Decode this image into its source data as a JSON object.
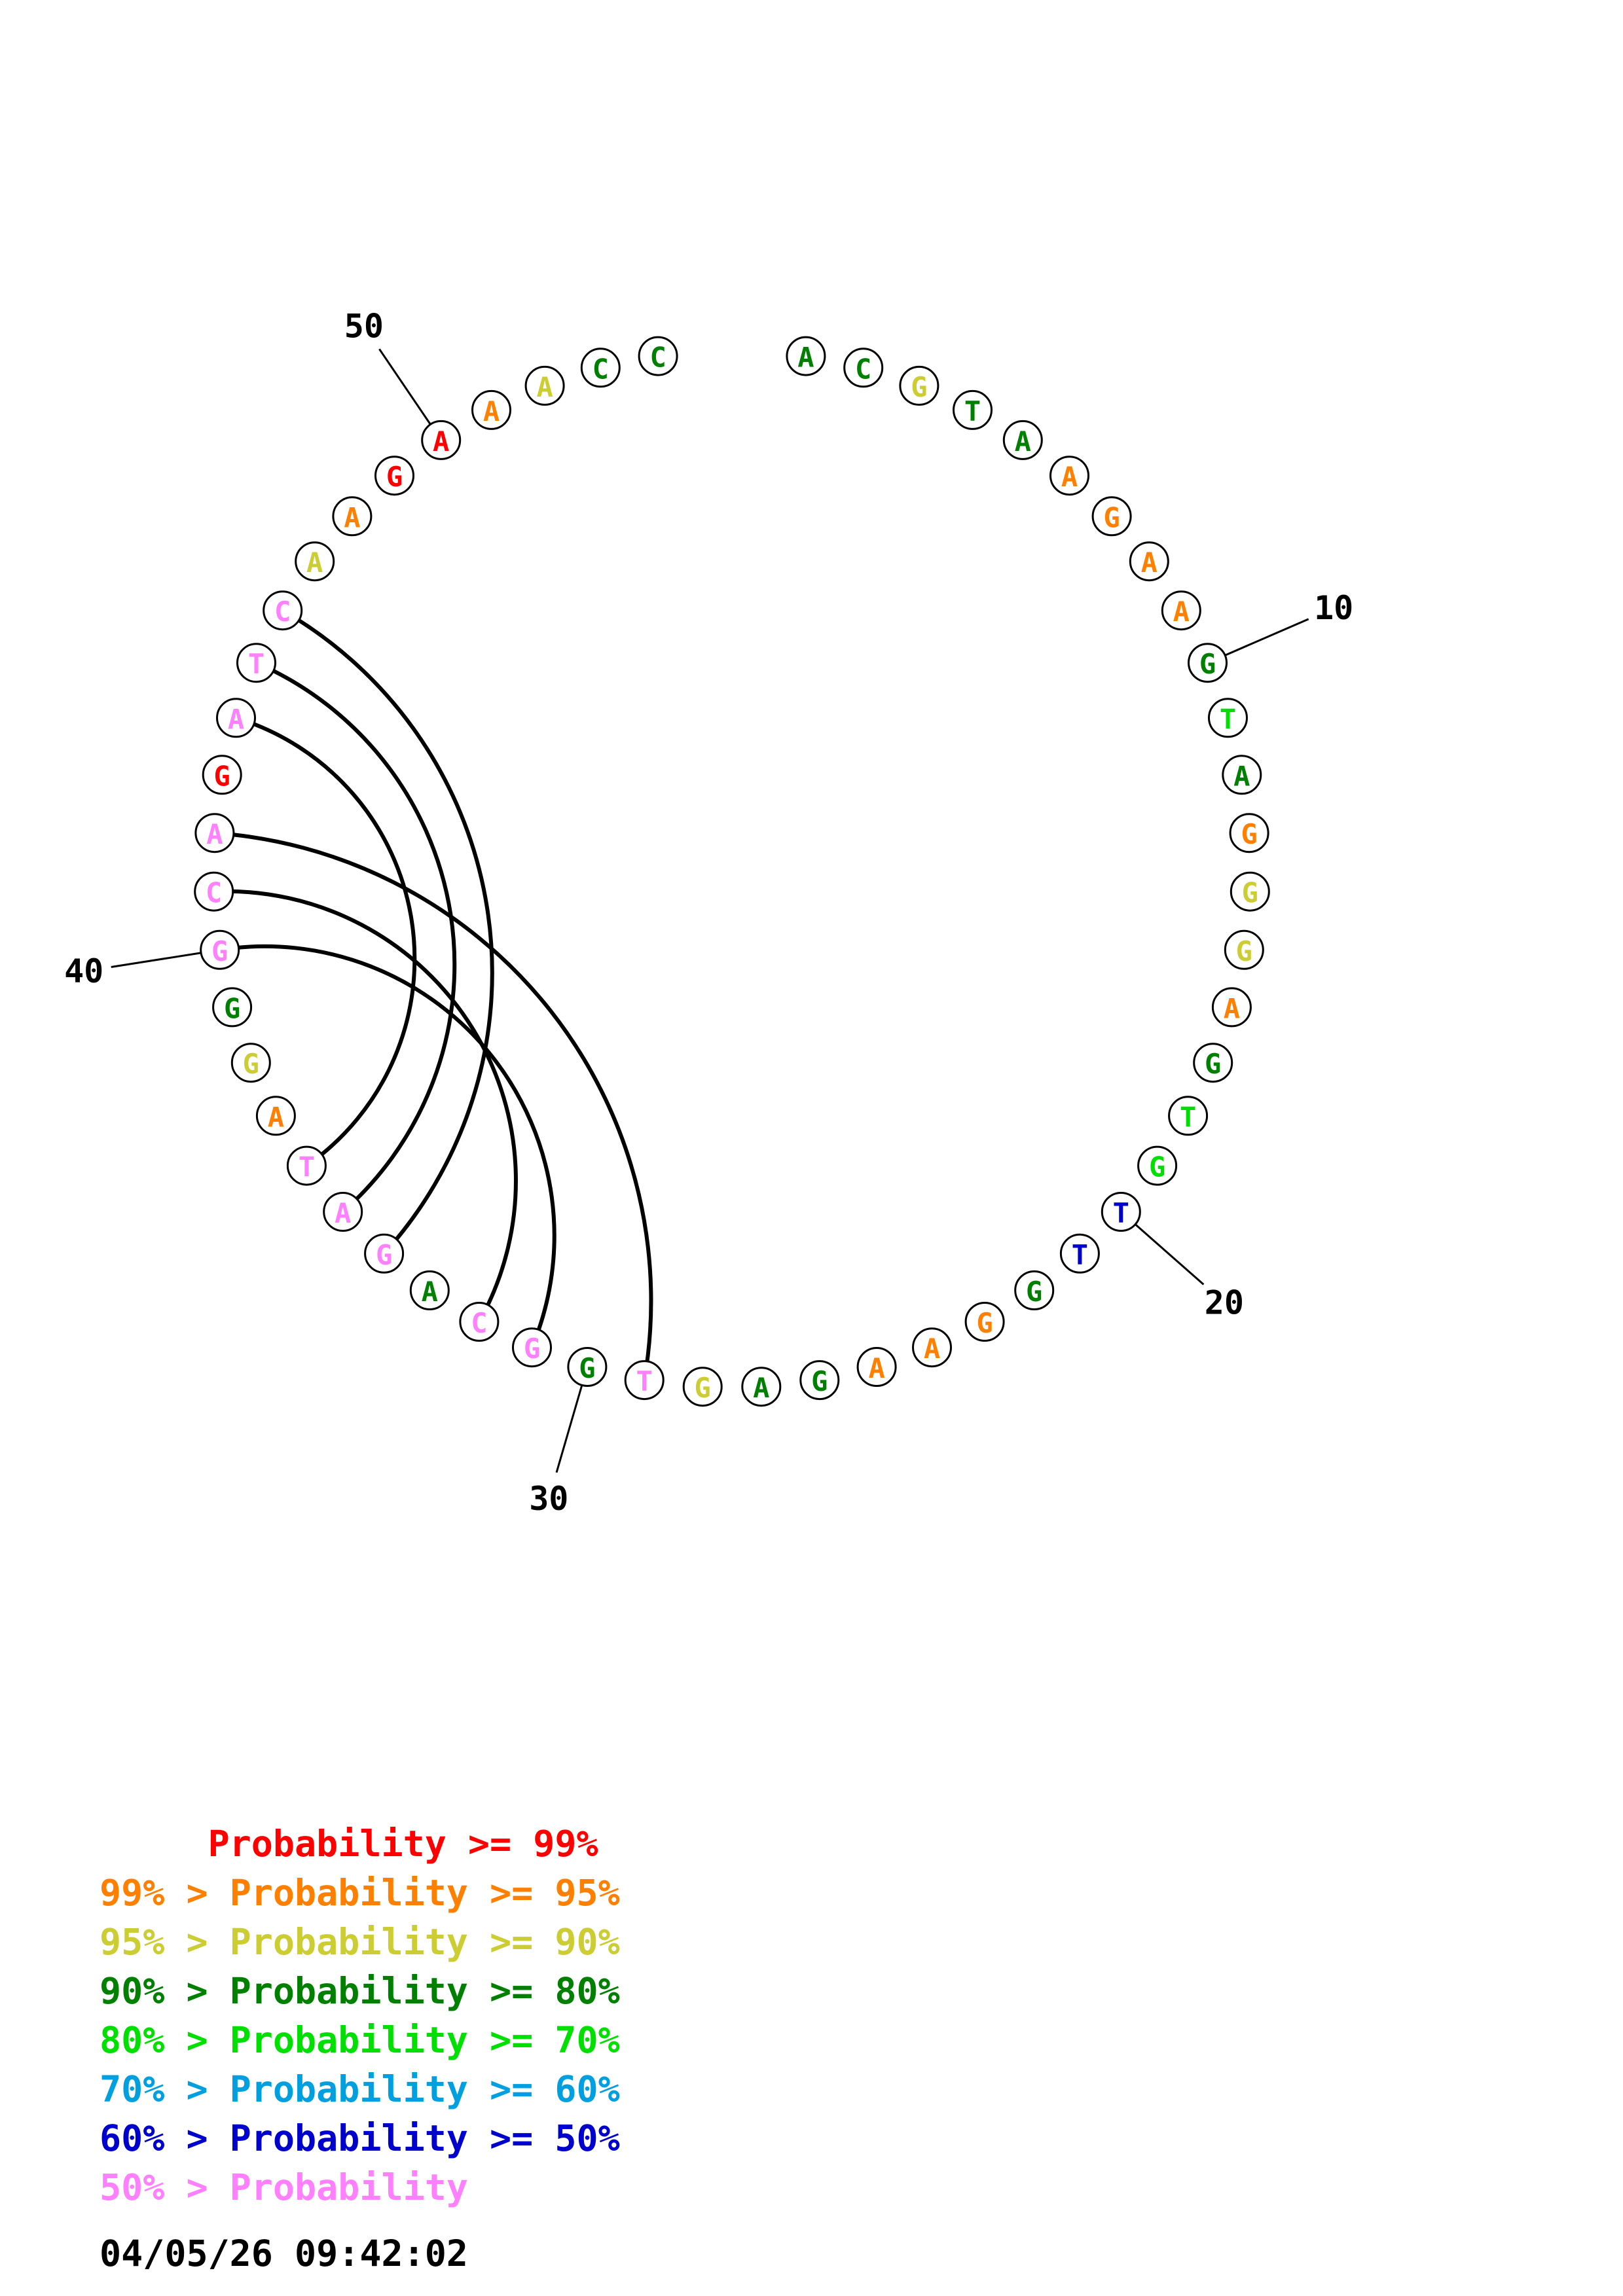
{
  "sequence": [
    {
      "base": "A",
      "color": "#008000"
    },
    {
      "base": "C",
      "color": "#008000"
    },
    {
      "base": "G",
      "color": "#cccc33"
    },
    {
      "base": "T",
      "color": "#008000"
    },
    {
      "base": "A",
      "color": "#008000"
    },
    {
      "base": "A",
      "color": "#ff8000"
    },
    {
      "base": "G",
      "color": "#ff8000"
    },
    {
      "base": "A",
      "color": "#ff8000"
    },
    {
      "base": "A",
      "color": "#ff8000"
    },
    {
      "base": "G",
      "color": "#008000"
    },
    {
      "base": "T",
      "color": "#00e000"
    },
    {
      "base": "A",
      "color": "#008000"
    },
    {
      "base": "G",
      "color": "#ff8000"
    },
    {
      "base": "G",
      "color": "#cccc33"
    },
    {
      "base": "G",
      "color": "#cccc33"
    },
    {
      "base": "A",
      "color": "#ff8000"
    },
    {
      "base": "G",
      "color": "#008000"
    },
    {
      "base": "T",
      "color": "#00e000"
    },
    {
      "base": "G",
      "color": "#00e000"
    },
    {
      "base": "T",
      "color": "#0000cc"
    },
    {
      "base": "T",
      "color": "#0000cc"
    },
    {
      "base": "G",
      "color": "#008000"
    },
    {
      "base": "G",
      "color": "#ff8000"
    },
    {
      "base": "A",
      "color": "#ff8000"
    },
    {
      "base": "A",
      "color": "#ff8000"
    },
    {
      "base": "G",
      "color": "#008000"
    },
    {
      "base": "A",
      "color": "#008000"
    },
    {
      "base": "G",
      "color": "#cccc33"
    },
    {
      "base": "T",
      "color": "#ff80ff"
    },
    {
      "base": "G",
      "color": "#008000"
    },
    {
      "base": "G",
      "color": "#ff80ff"
    },
    {
      "base": "C",
      "color": "#ff80ff"
    },
    {
      "base": "A",
      "color": "#008000"
    },
    {
      "base": "G",
      "color": "#ff80ff"
    },
    {
      "base": "A",
      "color": "#ff80ff"
    },
    {
      "base": "T",
      "color": "#ff80ff"
    },
    {
      "base": "A",
      "color": "#ff8000"
    },
    {
      "base": "G",
      "color": "#cccc33"
    },
    {
      "base": "G",
      "color": "#008000"
    },
    {
      "base": "G",
      "color": "#ff80ff"
    },
    {
      "base": "C",
      "color": "#ff80ff"
    },
    {
      "base": "A",
      "color": "#ff80ff"
    },
    {
      "base": "G",
      "color": "#ff0000"
    },
    {
      "base": "A",
      "color": "#ff80ff"
    },
    {
      "base": "T",
      "color": "#ff80ff"
    },
    {
      "base": "C",
      "color": "#ff80ff"
    },
    {
      "base": "A",
      "color": "#cccc33"
    },
    {
      "base": "A",
      "color": "#ff8000"
    },
    {
      "base": "G",
      "color": "#ff0000"
    },
    {
      "base": "A",
      "color": "#ff0000"
    },
    {
      "base": "A",
      "color": "#ff8000"
    },
    {
      "base": "A",
      "color": "#cccc33"
    },
    {
      "base": "C",
      "color": "#008000"
    },
    {
      "base": "C",
      "color": "#008000"
    }
  ],
  "position_labels": [
    {
      "position": 10,
      "text": "10"
    },
    {
      "position": 20,
      "text": "20"
    },
    {
      "position": 30,
      "text": "30"
    },
    {
      "position": 40,
      "text": "40"
    },
    {
      "position": 50,
      "text": "50"
    }
  ],
  "base_pairs": [
    [
      29,
      42
    ],
    [
      31,
      40
    ],
    [
      32,
      41
    ],
    [
      34,
      46
    ],
    [
      35,
      45
    ],
    [
      36,
      44
    ]
  ],
  "legend": [
    {
      "text": "     Probability >= 99%",
      "color": "#ff0000"
    },
    {
      "text": "99% > Probability >= 95%",
      "color": "#ff8000"
    },
    {
      "text": "95% > Probability >= 90%",
      "color": "#cccc33"
    },
    {
      "text": "90% > Probability >= 80%",
      "color": "#008000"
    },
    {
      "text": "80% > Probability >= 70%",
      "color": "#00e000"
    },
    {
      "text": "70% > Probability >= 60%",
      "color": "#00a0e0"
    },
    {
      "text": "60% > Probability >= 50%",
      "color": "#0000cc"
    },
    {
      "text": "50% > Probability",
      "color": "#ff80ff"
    }
  ],
  "timestamp": "04/05/26 09:42:02"
}
